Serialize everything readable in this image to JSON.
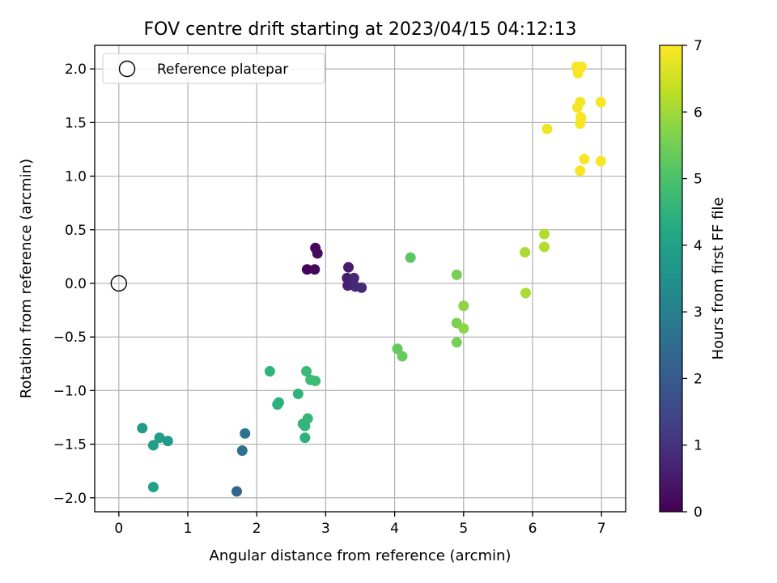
{
  "chart_data": {
    "type": "scatter",
    "title": "FOV centre drift starting at 2023/04/15 04:12:13",
    "xlabel": "Angular distance from reference (arcmin)",
    "ylabel": "Rotation from reference (arcmin)",
    "xlim": [
      -0.35,
      7.35
    ],
    "ylim": [
      -2.13,
      2.22
    ],
    "xticks": [
      0,
      1,
      2,
      3,
      4,
      5,
      6,
      7
    ],
    "xtick_labels": [
      "0",
      "1",
      "2",
      "3",
      "4",
      "5",
      "6",
      "7"
    ],
    "yticks": [
      -2.0,
      -1.5,
      -1.0,
      -0.5,
      0.0,
      0.5,
      1.0,
      1.5,
      2.0
    ],
    "ytick_labels": [
      "−2.0",
      "−1.5",
      "−1.0",
      "−0.5",
      "0.0",
      "0.5",
      "1.0",
      "1.5",
      "2.0"
    ],
    "grid": true,
    "legend": {
      "location": "upper-left",
      "entries": [
        "Reference platepar"
      ]
    },
    "reference_point": {
      "x": 0.0,
      "y": 0.0,
      "marker": "hollow-circle"
    },
    "colorbar": {
      "label": "Hours from first FF file",
      "colormap": "viridis",
      "range": [
        0,
        7
      ],
      "ticks": [
        "0",
        "1",
        "2",
        "3",
        "4",
        "5",
        "6",
        "7"
      ]
    },
    "points": [
      {
        "x": 2.73,
        "y": 0.13,
        "t": 0.1
      },
      {
        "x": 2.84,
        "y": 0.13,
        "t": 0.15
      },
      {
        "x": 2.85,
        "y": 0.33,
        "t": 0.15
      },
      {
        "x": 2.88,
        "y": 0.28,
        "t": 0.2
      },
      {
        "x": 3.33,
        "y": 0.15,
        "t": 0.55
      },
      {
        "x": 3.31,
        "y": 0.05,
        "t": 0.55
      },
      {
        "x": 3.32,
        "y": -0.02,
        "t": 0.6
      },
      {
        "x": 3.41,
        "y": 0.05,
        "t": 0.75
      },
      {
        "x": 3.43,
        "y": -0.03,
        "t": 0.8
      },
      {
        "x": 3.52,
        "y": -0.04,
        "t": 0.85
      },
      {
        "x": 1.71,
        "y": -1.94,
        "t": 2.3
      },
      {
        "x": 1.79,
        "y": -1.56,
        "t": 2.6
      },
      {
        "x": 1.83,
        "y": -1.4,
        "t": 2.7
      },
      {
        "x": 0.34,
        "y": -1.35,
        "t": 3.8
      },
      {
        "x": 0.5,
        "y": -1.51,
        "t": 3.9
      },
      {
        "x": 0.59,
        "y": -1.44,
        "t": 3.85
      },
      {
        "x": 0.71,
        "y": -1.47,
        "t": 3.8
      },
      {
        "x": 0.5,
        "y": -1.9,
        "t": 4.0
      },
      {
        "x": 2.19,
        "y": -0.82,
        "t": 4.5
      },
      {
        "x": 2.3,
        "y": -1.13,
        "t": 4.45
      },
      {
        "x": 2.32,
        "y": -1.11,
        "t": 4.45
      },
      {
        "x": 2.6,
        "y": -1.03,
        "t": 4.5
      },
      {
        "x": 2.67,
        "y": -1.31,
        "t": 4.5
      },
      {
        "x": 2.7,
        "y": -1.33,
        "t": 4.55
      },
      {
        "x": 2.7,
        "y": -1.44,
        "t": 4.45
      },
      {
        "x": 2.74,
        "y": -1.26,
        "t": 4.6
      },
      {
        "x": 2.72,
        "y": -0.82,
        "t": 4.7
      },
      {
        "x": 2.78,
        "y": -0.9,
        "t": 4.75
      },
      {
        "x": 2.85,
        "y": -0.91,
        "t": 4.8
      },
      {
        "x": 4.04,
        "y": -0.61,
        "t": 5.3
      },
      {
        "x": 4.11,
        "y": -0.68,
        "t": 5.35
      },
      {
        "x": 4.23,
        "y": 0.24,
        "t": 5.2
      },
      {
        "x": 4.9,
        "y": 0.08,
        "t": 5.55
      },
      {
        "x": 4.9,
        "y": -0.37,
        "t": 5.6
      },
      {
        "x": 4.9,
        "y": -0.55,
        "t": 5.55
      },
      {
        "x": 5.0,
        "y": -0.21,
        "t": 5.8
      },
      {
        "x": 5.0,
        "y": -0.42,
        "t": 5.8
      },
      {
        "x": 5.89,
        "y": 0.29,
        "t": 6.1
      },
      {
        "x": 5.9,
        "y": -0.09,
        "t": 6.1
      },
      {
        "x": 6.17,
        "y": 0.46,
        "t": 6.15
      },
      {
        "x": 6.17,
        "y": 0.34,
        "t": 6.2
      },
      {
        "x": 6.21,
        "y": 1.44,
        "t": 6.85
      },
      {
        "x": 6.64,
        "y": 2.02,
        "t": 6.95
      },
      {
        "x": 6.66,
        "y": 1.96,
        "t": 6.95
      },
      {
        "x": 6.66,
        "y": 1.98,
        "t": 6.95
      },
      {
        "x": 6.71,
        "y": 2.02,
        "t": 6.95
      },
      {
        "x": 6.65,
        "y": 1.64,
        "t": 6.9
      },
      {
        "x": 6.69,
        "y": 1.69,
        "t": 6.9
      },
      {
        "x": 6.7,
        "y": 1.55,
        "t": 6.95
      },
      {
        "x": 6.7,
        "y": 1.53,
        "t": 6.95
      },
      {
        "x": 6.69,
        "y": 1.49,
        "t": 6.95
      },
      {
        "x": 6.69,
        "y": 1.05,
        "t": 6.95
      },
      {
        "x": 6.75,
        "y": 1.16,
        "t": 6.95
      },
      {
        "x": 6.99,
        "y": 1.69,
        "t": 6.95
      },
      {
        "x": 6.99,
        "y": 1.14,
        "t": 6.95
      }
    ]
  }
}
